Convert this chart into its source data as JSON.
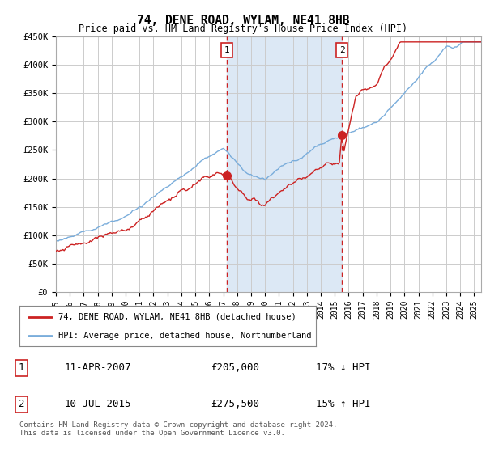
{
  "title": "74, DENE ROAD, WYLAM, NE41 8HB",
  "subtitle": "Price paid vs. HM Land Registry's House Price Index (HPI)",
  "ylim": [
    0,
    450000
  ],
  "yticks": [
    0,
    50000,
    100000,
    150000,
    200000,
    250000,
    300000,
    350000,
    400000,
    450000
  ],
  "ytick_labels": [
    "£0",
    "£50K",
    "£100K",
    "£150K",
    "£200K",
    "£250K",
    "£300K",
    "£350K",
    "£400K",
    "£450K"
  ],
  "hpi_color": "#7aaddb",
  "price_color": "#cc2222",
  "sale1_date": "11-APR-2007",
  "sale1_price": 205000,
  "sale2_date": "10-JUL-2015",
  "sale2_price": 275500,
  "sale1_pct": "17% ↓ HPI",
  "sale2_pct": "15% ↑ HPI",
  "legend_line1": "74, DENE ROAD, WYLAM, NE41 8HB (detached house)",
  "legend_line2": "HPI: Average price, detached house, Northumberland",
  "footnote": "Contains HM Land Registry data © Crown copyright and database right 2024.\nThis data is licensed under the Open Government Licence v3.0.",
  "plot_bg": "#ffffff",
  "grid_color": "#cccccc",
  "sale1_x": 2007.27,
  "sale2_x": 2015.52,
  "span_color": "#dce8f5",
  "xlim_start": 1995,
  "xlim_end": 2025.5
}
